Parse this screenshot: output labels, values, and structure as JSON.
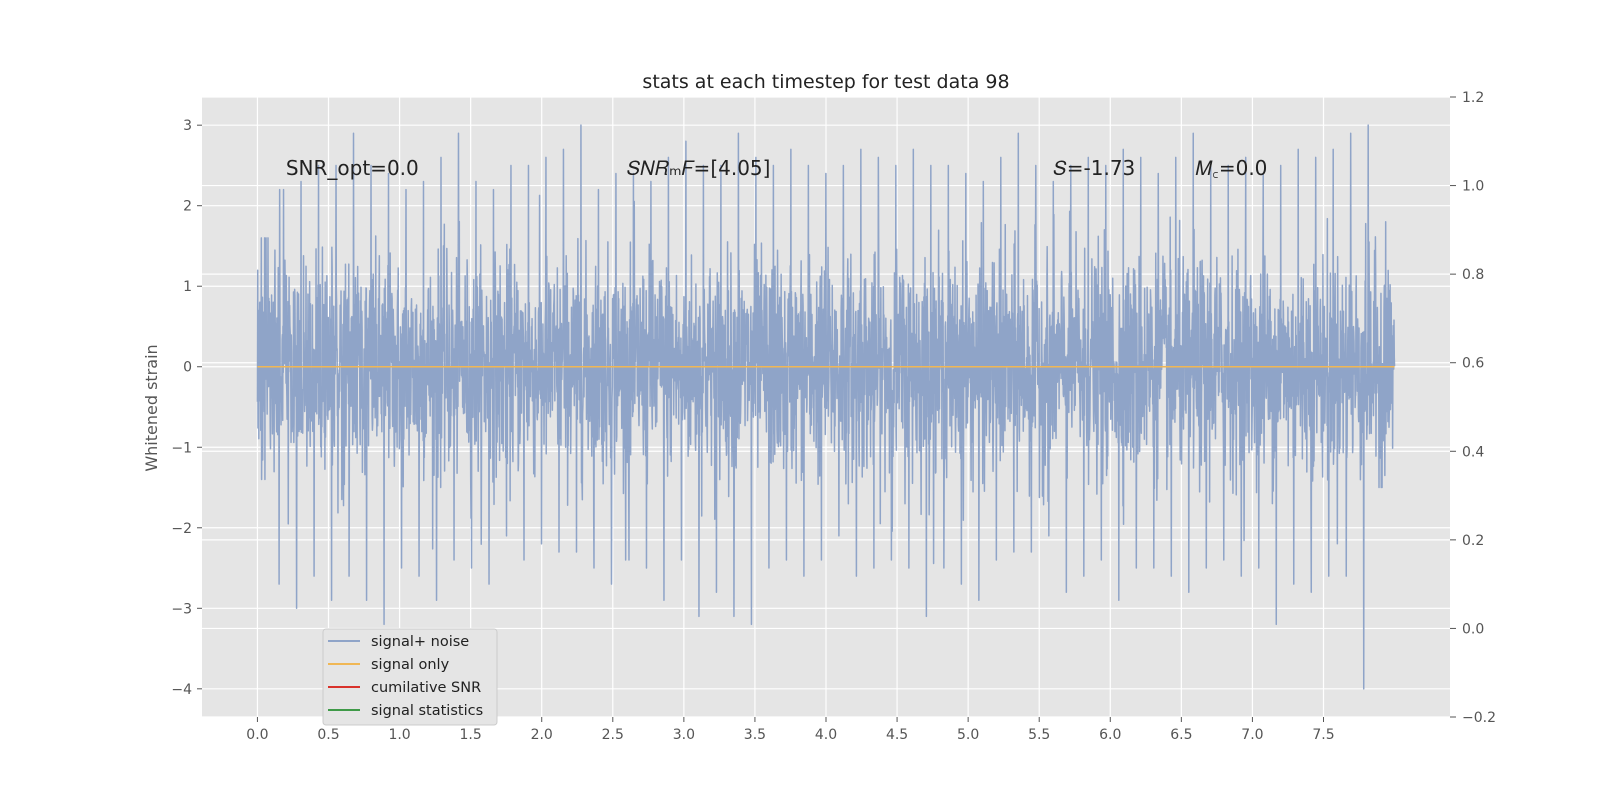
{
  "chart_data": {
    "type": "line",
    "title": "stats at each timestep for test data 98",
    "ylabel": "Whitened strain",
    "xlabel": "",
    "xlim": [
      -0.39,
      8.39
    ],
    "ylim": [
      -4.35,
      3.35
    ],
    "y2lim": [
      -0.2,
      1.2
    ],
    "xticks": [
      0.0,
      0.5,
      1.0,
      1.5,
      2.0,
      2.5,
      3.0,
      3.5,
      4.0,
      4.5,
      5.0,
      5.5,
      6.0,
      6.5,
      7.0,
      7.5
    ],
    "xtick_labels": [
      "0.0",
      "0.5",
      "1.0",
      "1.5",
      "2.0",
      "2.5",
      "3.0",
      "3.5",
      "4.0",
      "4.5",
      "5.0",
      "5.5",
      "6.0",
      "6.5",
      "7.0",
      "7.5"
    ],
    "yticks": [
      3,
      2,
      1,
      0,
      -1,
      -2,
      -3,
      -4
    ],
    "ytick_labels": [
      "3",
      "2",
      "1",
      "0",
      "−1",
      "−2",
      "−3",
      "−4"
    ],
    "y2ticks": [
      1.2,
      1.0,
      0.8,
      0.6,
      0.4,
      0.2,
      0.0,
      -0.2
    ],
    "y2tick_labels": [
      "1.2",
      "1.0",
      "0.8",
      "0.6",
      "0.4",
      "0.2",
      "0.0",
      "−0.2"
    ],
    "grid": true,
    "legend_position": "lower-left",
    "annotations": [
      {
        "text": "SNR_opt=0.0",
        "x": 0.2,
        "y": 2.38
      },
      {
        "text": "𝑆𝑁𝑅ₘ𝐹=[4.05]",
        "x": 2.6,
        "y": 2.38
      },
      {
        "text": "𝑆=-1.73",
        "x": 5.6,
        "y": 2.38
      },
      {
        "text": "𝑀꜀=0.0",
        "x": 6.6,
        "y": 2.38
      }
    ],
    "series": [
      {
        "name": "signal+ noise",
        "color": "#8fa4c8",
        "x_range": [
          0.0,
          8.0
        ],
        "spread_std": 0.65,
        "envelope_max": [
          1.6,
          2.2,
          2.3,
          2.5,
          2.5,
          2.9,
          2.5,
          2.4,
          2.2,
          2.3,
          2.6,
          2.9,
          2.3,
          2.2,
          2.5,
          2.5,
          2.6,
          2.7,
          3.0,
          2.2,
          2.4,
          2.4,
          2.3,
          2.6,
          2.8,
          2.5,
          2.5,
          2.9,
          2.6,
          2.5,
          2.7,
          2.5,
          2.4,
          2.5,
          2.7,
          2.6,
          2.5,
          2.7,
          2.5,
          2.5,
          2.4,
          2.3,
          2.6,
          2.9,
          2.5,
          2.3,
          2.5,
          2.6,
          2.5,
          2.7,
          2.6,
          2.4,
          2.6,
          2.9,
          2.5,
          2.5,
          2.6,
          2.4,
          2.5,
          2.7,
          2.6,
          2.7,
          2.9,
          3.0,
          1.8
        ],
        "envelope_min": [
          -1.4,
          -2.7,
          -3.0,
          -2.6,
          -2.9,
          -2.6,
          -2.9,
          -3.2,
          -2.5,
          -2.6,
          -2.9,
          -2.4,
          -2.5,
          -2.7,
          -2.1,
          -2.4,
          -2.2,
          -2.3,
          -2.3,
          -2.5,
          -2.7,
          -2.4,
          -2.5,
          -2.9,
          -2.4,
          -3.1,
          -2.8,
          -3.1,
          -3.2,
          -2.5,
          -2.4,
          -2.6,
          -2.4,
          -2.1,
          -2.6,
          -2.5,
          -2.4,
          -2.5,
          -3.1,
          -2.5,
          -2.7,
          -2.9,
          -2.4,
          -2.3,
          -2.3,
          -2.1,
          -2.8,
          -2.6,
          -2.4,
          -2.9,
          -2.5,
          -2.5,
          -2.6,
          -2.8,
          -2.5,
          -2.4,
          -2.6,
          -2.5,
          -3.2,
          -2.7,
          -2.8,
          -2.6,
          -2.6,
          -4.0,
          -1.5
        ]
      },
      {
        "name": "signal only",
        "color": "#f0b755",
        "x": [
          0.0,
          8.0
        ],
        "y": [
          0.0,
          0.0
        ]
      },
      {
        "name": "cumilative SNR",
        "color": "#d9322b",
        "x": [],
        "y": []
      },
      {
        "name": "signal statistics",
        "color": "#3f9a48",
        "x": [],
        "y": []
      }
    ]
  }
}
